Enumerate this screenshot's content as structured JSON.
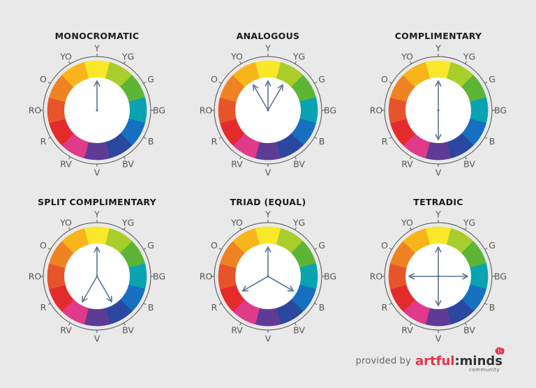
{
  "colors": [
    {
      "label": "Y",
      "hex": "#f9e72a"
    },
    {
      "label": "YG",
      "hex": "#a9cd2a"
    },
    {
      "label": "G",
      "hex": "#5db536"
    },
    {
      "label": "BG",
      "hex": "#0aa3b1"
    },
    {
      "label": "B",
      "hex": "#1670bf"
    },
    {
      "label": "BV",
      "hex": "#2b479f"
    },
    {
      "label": "V",
      "hex": "#5e3c96"
    },
    {
      "label": "RV",
      "hex": "#e03a8a"
    },
    {
      "label": "R",
      "hex": "#e42b2b"
    },
    {
      "label": "RO",
      "hex": "#e8542a"
    },
    {
      "label": "O",
      "hex": "#ef8323"
    },
    {
      "label": "YO",
      "hex": "#f8b51b"
    }
  ],
  "arrow_color": "#5b7590",
  "wheels": [
    {
      "title": "MONOCROMATIC",
      "arrow_directions": [
        "Y"
      ]
    },
    {
      "title": "ANALOGOUS",
      "arrow_directions": [
        "YO",
        "Y",
        "YG"
      ]
    },
    {
      "title": "COMPLIMENTARY",
      "arrow_directions": [
        "Y",
        "V"
      ]
    },
    {
      "title": "SPLIT COMPLIMENTARY",
      "arrow_directions": [
        "Y",
        "BV",
        "RV"
      ]
    },
    {
      "title": "TRIAD (EQUAL)",
      "arrow_directions": [
        "Y",
        "B",
        "R"
      ]
    },
    {
      "title": "TETRADIC",
      "arrow_directions": [
        "Y",
        "BG",
        "V",
        "RO"
      ]
    }
  ],
  "footer": {
    "prefix": "provided by",
    "brand_part1": "artful",
    "brand_part2": ":minds",
    "brand_sub": "community"
  }
}
